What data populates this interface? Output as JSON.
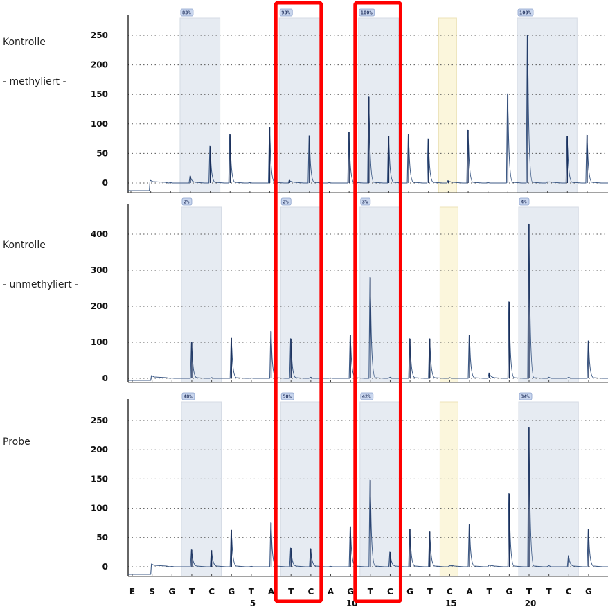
{
  "panels": [
    {
      "label_line1": "Kontrolle",
      "label_line2": "- methyliert -"
    },
    {
      "label_line1": "Kontrolle",
      "label_line2": "- unmethyliert -"
    },
    {
      "label_line1": "Probe",
      "label_line2": ""
    }
  ],
  "colors": {
    "cpg_region": "#e6ebf2",
    "control_region": "#fbf6dc",
    "trace": "#3d5a86",
    "trace_dark": "#1b2f5a",
    "highlight_box": "#ff0000",
    "badge_fill": "#c9d6ee",
    "badge_stroke": "#8aa1cc",
    "grid": "#555555",
    "axis": "#000000"
  },
  "chart_data": {
    "type": "bar",
    "title": "",
    "xlabel": "",
    "ylabel": "",
    "grid": true,
    "categories": [
      "E",
      "S",
      "G",
      "T",
      "C",
      "G",
      "T",
      "A",
      "T",
      "C",
      "A",
      "G",
      "T",
      "C",
      "G",
      "T",
      "C",
      "A",
      "T",
      "G",
      "T",
      "T",
      "C",
      "G"
    ],
    "x_index_labels": [
      {
        "after_index": 6,
        "label": "5"
      },
      {
        "after_index": 11,
        "label": "10"
      },
      {
        "after_index": 16,
        "label": "15"
      },
      {
        "after_index": 20,
        "label": "20"
      }
    ],
    "cpg_regions": [
      {
        "start": 3,
        "end": 4
      },
      {
        "start": 8,
        "end": 9
      },
      {
        "start": 12,
        "end": 13
      },
      {
        "start": 20,
        "end": 22
      }
    ],
    "control_region": {
      "start": 16,
      "end": 16
    },
    "highlight_boxes": [
      {
        "start": 8,
        "end": 9
      },
      {
        "start": 12,
        "end": 13
      }
    ],
    "series": [
      {
        "name": "Kontrolle - methyliert -",
        "ylim": [
          0,
          280
        ],
        "yticks": [
          0,
          50,
          100,
          150,
          200,
          250
        ],
        "values": [
          0,
          0,
          0,
          12,
          62,
          82,
          0,
          94,
          5,
          80,
          0,
          86,
          146,
          79,
          82,
          75,
          4,
          90,
          0,
          151,
          250,
          2,
          79,
          81
        ],
        "methylation_percent": [
          "83%",
          "93%",
          "100%",
          "100%"
        ]
      },
      {
        "name": "Kontrolle - unmethyliert -",
        "ylim": [
          0,
          480
        ],
        "yticks": [
          0,
          100,
          200,
          300,
          400
        ],
        "values": [
          0,
          0,
          0,
          100,
          1,
          112,
          0,
          130,
          110,
          2,
          0,
          120,
          280,
          2,
          110,
          110,
          1,
          120,
          15,
          212,
          428,
          2,
          2,
          104
        ],
        "methylation_percent": [
          "2%",
          "2%",
          "3%",
          "4%"
        ]
      },
      {
        "name": "Probe",
        "ylim": [
          0,
          280
        ],
        "yticks": [
          0,
          50,
          100,
          150,
          200,
          250
        ],
        "values": [
          0,
          0,
          0,
          29,
          28,
          63,
          0,
          75,
          32,
          31,
          0,
          69,
          148,
          25,
          64,
          60,
          2,
          72,
          3,
          125,
          238,
          1,
          19,
          64
        ],
        "methylation_percent": [
          "48%",
          "50%",
          "42%",
          "34%"
        ]
      }
    ]
  }
}
